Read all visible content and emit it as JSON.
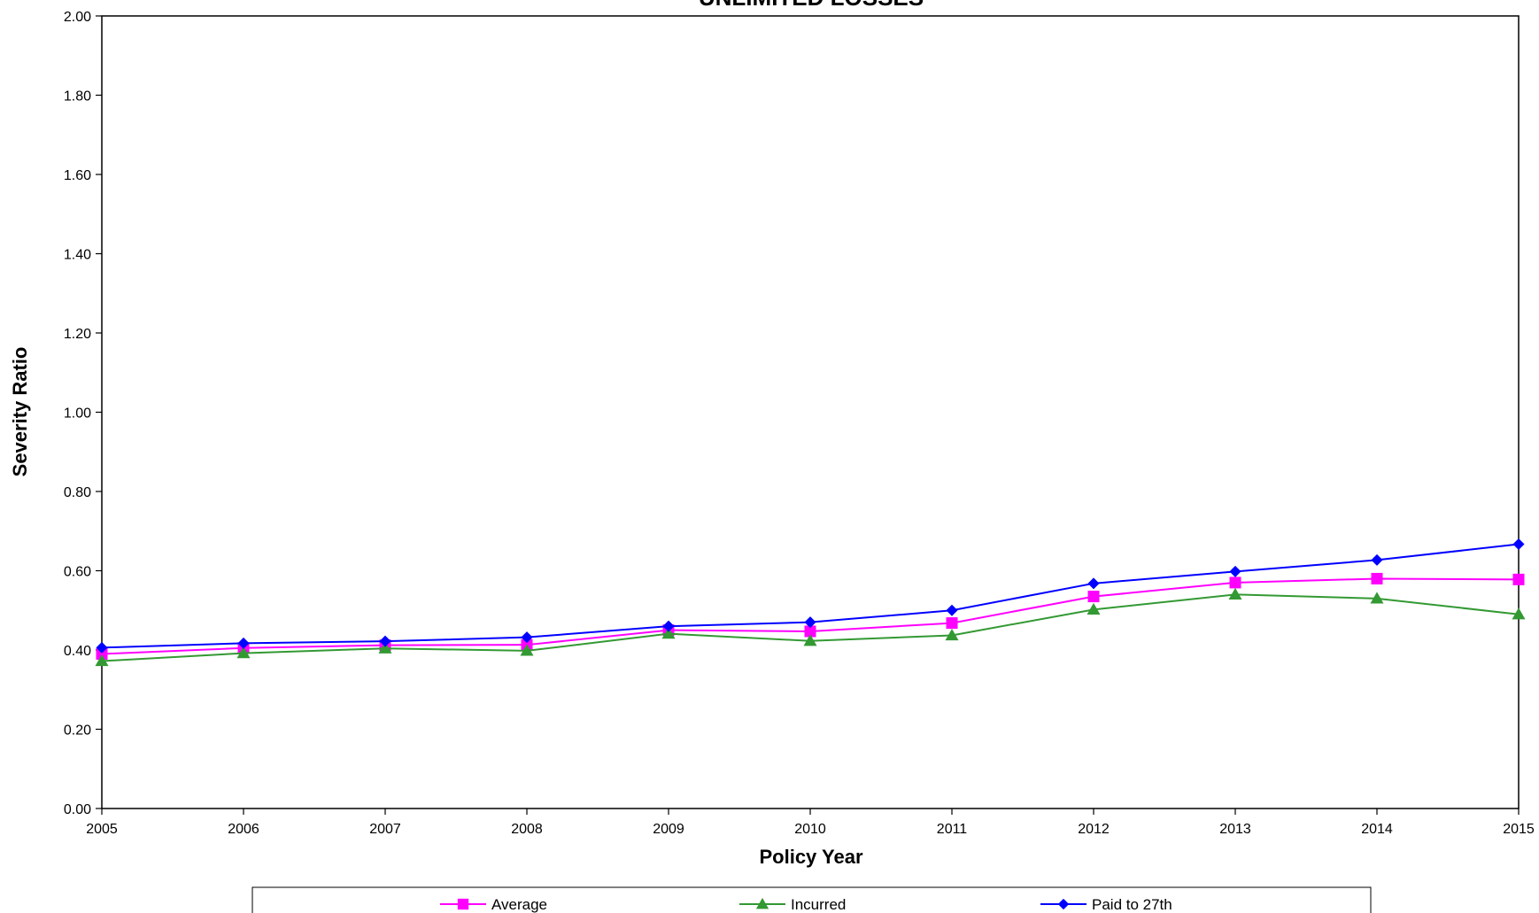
{
  "chart_data": {
    "type": "line",
    "title": "UNLIMITED LOSSES",
    "xlabel": "Policy Year",
    "ylabel": "Severity Ratio",
    "x": [
      2005,
      2006,
      2007,
      2008,
      2009,
      2010,
      2011,
      2012,
      2013,
      2014,
      2015
    ],
    "xlim": [
      2005,
      2015
    ],
    "ylim": [
      0,
      2.0
    ],
    "ytick_labels": [
      "0.00",
      "0.20",
      "0.40",
      "0.60",
      "0.80",
      "1.00",
      "1.20",
      "1.40",
      "1.60",
      "1.80",
      "2.00"
    ],
    "grid": false,
    "legend_position": "bottom",
    "series": [
      {
        "name": "Average",
        "color": "#ff00ff",
        "marker": "square",
        "values": [
          0.39,
          0.405,
          0.412,
          0.413,
          0.45,
          0.447,
          0.468,
          0.535,
          0.57,
          0.58,
          0.578
        ]
      },
      {
        "name": "Incurred",
        "color": "#339933",
        "marker": "triangle",
        "values": [
          0.372,
          0.392,
          0.404,
          0.398,
          0.441,
          0.423,
          0.437,
          0.502,
          0.54,
          0.53,
          0.49
        ]
      },
      {
        "name": "Paid to 27th",
        "color": "#0000ff",
        "marker": "diamond",
        "values": [
          0.406,
          0.417,
          0.422,
          0.432,
          0.46,
          0.47,
          0.5,
          0.568,
          0.598,
          0.627,
          0.667
        ]
      }
    ]
  }
}
